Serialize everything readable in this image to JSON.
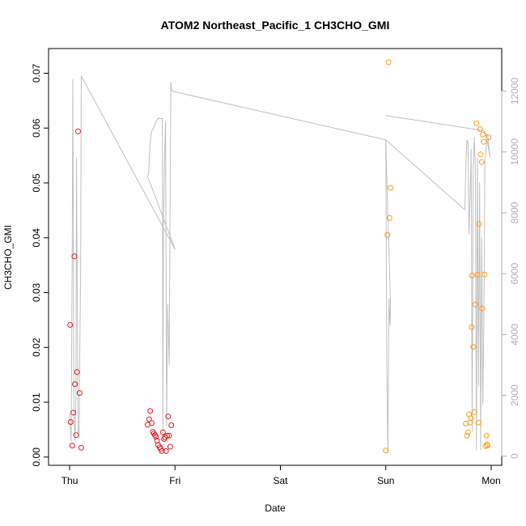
{
  "chart_data": {
    "type": "scatter",
    "title": "ATOM2 Northeast_Pacific_1 CH3CHO_GMI",
    "xlabel": "Date",
    "ylabel": "CH3CHO_GMI",
    "xlim": [
      -0.2,
      4.1
    ],
    "ylim": [
      -0.0015,
      0.0745
    ],
    "ylim_right": [
      -300,
      13400
    ],
    "x_ticks": [
      {
        "x": 0,
        "label": "Thu"
      },
      {
        "x": 1,
        "label": "Fri"
      },
      {
        "x": 2,
        "label": "Sat"
      },
      {
        "x": 3,
        "label": "Sun"
      },
      {
        "x": 4,
        "label": "Mon"
      }
    ],
    "y_ticks": [
      "0.00",
      "0.01",
      "0.02",
      "0.03",
      "0.04",
      "0.05",
      "0.06",
      "0.07"
    ],
    "y_ticks_right": [
      "0",
      "2000",
      "4000",
      "6000",
      "8000",
      "10000",
      "12000"
    ],
    "colors": {
      "series_a": "#e41a1c",
      "series_b": "#ff9a1a",
      "altitude_line": "#c0c0c0",
      "right_axis": "#b0b0b0"
    },
    "series": [
      {
        "color": "#e41a1c",
        "points": [
          [
            0.005,
            0.0241
          ],
          [
            0.01,
            0.0064
          ],
          [
            0.025,
            0.0021
          ],
          [
            0.035,
            0.0081
          ],
          [
            0.045,
            0.0366
          ],
          [
            0.05,
            0.0133
          ],
          [
            0.06,
            0.004
          ],
          [
            0.07,
            0.0155
          ],
          [
            0.08,
            0.0594
          ],
          [
            0.095,
            0.0117
          ],
          [
            0.11,
            0.0017
          ],
          [
            0.74,
            0.0059
          ],
          [
            0.755,
            0.0069
          ],
          [
            0.765,
            0.0084
          ],
          [
            0.78,
            0.0062
          ],
          [
            0.79,
            0.0046
          ],
          [
            0.8,
            0.0043
          ],
          [
            0.81,
            0.004
          ],
          [
            0.82,
            0.0037
          ],
          [
            0.83,
            0.003
          ],
          [
            0.84,
            0.0022
          ],
          [
            0.855,
            0.0018
          ],
          [
            0.865,
            0.0015
          ],
          [
            0.875,
            0.0011
          ],
          [
            0.885,
            0.0045
          ],
          [
            0.895,
            0.0033
          ],
          [
            0.905,
            0.0036
          ],
          [
            0.915,
            0.0011
          ],
          [
            0.925,
            0.0039
          ],
          [
            0.935,
            0.0074
          ],
          [
            0.945,
            0.0039
          ],
          [
            0.955,
            0.0019
          ],
          [
            0.965,
            0.0058
          ]
        ]
      },
      {
        "color": "#ff9a1a",
        "points": [
          [
            3.0,
            0.0012
          ],
          [
            3.015,
            0.0405
          ],
          [
            3.025,
            0.072
          ],
          [
            3.035,
            0.0436
          ],
          [
            3.045,
            0.0491
          ],
          [
            3.76,
            0.0061
          ],
          [
            3.77,
            0.0039
          ],
          [
            3.78,
            0.0045
          ],
          [
            3.79,
            0.0078
          ],
          [
            3.8,
            0.0063
          ],
          [
            3.81,
            0.0071
          ],
          [
            3.815,
            0.0237
          ],
          [
            3.82,
            0.0331
          ],
          [
            3.83,
            0.0201
          ],
          [
            3.84,
            0.0082
          ],
          [
            3.85,
            0.0278
          ],
          [
            3.86,
            0.0609
          ],
          [
            3.87,
            0.0333
          ],
          [
            3.88,
            0.0063
          ],
          [
            3.885,
            0.0425
          ],
          [
            3.895,
            0.0598
          ],
          [
            3.9,
            0.0552
          ],
          [
            3.91,
            0.0538
          ],
          [
            3.915,
            0.0271
          ],
          [
            3.92,
            0.0588
          ],
          [
            3.93,
            0.0575
          ],
          [
            3.935,
            0.0333
          ],
          [
            3.945,
            0.002
          ],
          [
            3.955,
            0.0039
          ],
          [
            3.96,
            0.0023
          ],
          [
            3.965,
            0.0021
          ],
          [
            3.975,
            0.0583
          ]
        ]
      }
    ],
    "altitude_line": [
      [
        0.0,
        1400
      ],
      [
        0.015,
        500
      ],
      [
        0.025,
        7000
      ],
      [
        0.03,
        12400
      ],
      [
        0.04,
        1500
      ],
      [
        0.05,
        500
      ],
      [
        0.06,
        2000
      ],
      [
        0.065,
        9800
      ],
      [
        0.08,
        800
      ],
      [
        0.09,
        600
      ],
      [
        0.095,
        3000
      ],
      [
        0.105,
        6200
      ],
      [
        0.11,
        12500
      ],
      [
        1.0,
        6800
      ],
      [
        0.74,
        9200
      ],
      [
        0.75,
        9300
      ],
      [
        0.76,
        10100
      ],
      [
        0.77,
        10500
      ],
      [
        0.78,
        10700
      ],
      [
        0.8,
        10800
      ],
      [
        0.82,
        11000
      ],
      [
        0.84,
        11100
      ],
      [
        0.87,
        11100
      ],
      [
        0.88,
        11100
      ],
      [
        0.885,
        500
      ],
      [
        0.89,
        7500
      ],
      [
        0.9,
        9800
      ],
      [
        0.91,
        11000
      ],
      [
        0.92,
        1000
      ],
      [
        0.93,
        5000
      ],
      [
        0.945,
        3000
      ],
      [
        0.96,
        12300
      ],
      [
        0.97,
        12000
      ],
      [
        3.0,
        10400
      ],
      [
        3.01,
        3000
      ],
      [
        3.02,
        100
      ],
      [
        3.03,
        5200
      ],
      [
        3.04,
        4300
      ],
      [
        3.045,
        5000
      ],
      [
        3.0,
        10400
      ],
      [
        3.75,
        8100
      ],
      [
        3.76,
        9600
      ],
      [
        3.77,
        10400
      ],
      [
        3.78,
        10300
      ],
      [
        3.79,
        7300
      ],
      [
        3.8,
        8500
      ],
      [
        3.81,
        10100
      ],
      [
        3.82,
        800
      ],
      [
        3.83,
        9500
      ],
      [
        3.84,
        10500
      ],
      [
        3.85,
        9500
      ],
      [
        3.86,
        200
      ],
      [
        3.87,
        9800
      ],
      [
        3.88,
        2300
      ],
      [
        3.89,
        9000
      ],
      [
        3.9,
        200
      ],
      [
        3.91,
        7200
      ],
      [
        3.92,
        1700
      ],
      [
        3.93,
        4300
      ],
      [
        3.94,
        9600
      ],
      [
        3.95,
        10000
      ],
      [
        3.96,
        10600
      ],
      [
        3.97,
        10500
      ],
      [
        3.98,
        10100
      ],
      [
        3.99,
        9800
      ],
      [
        3.95,
        10600
      ],
      [
        3.93,
        10700
      ],
      [
        3.0,
        11200
      ]
    ]
  }
}
